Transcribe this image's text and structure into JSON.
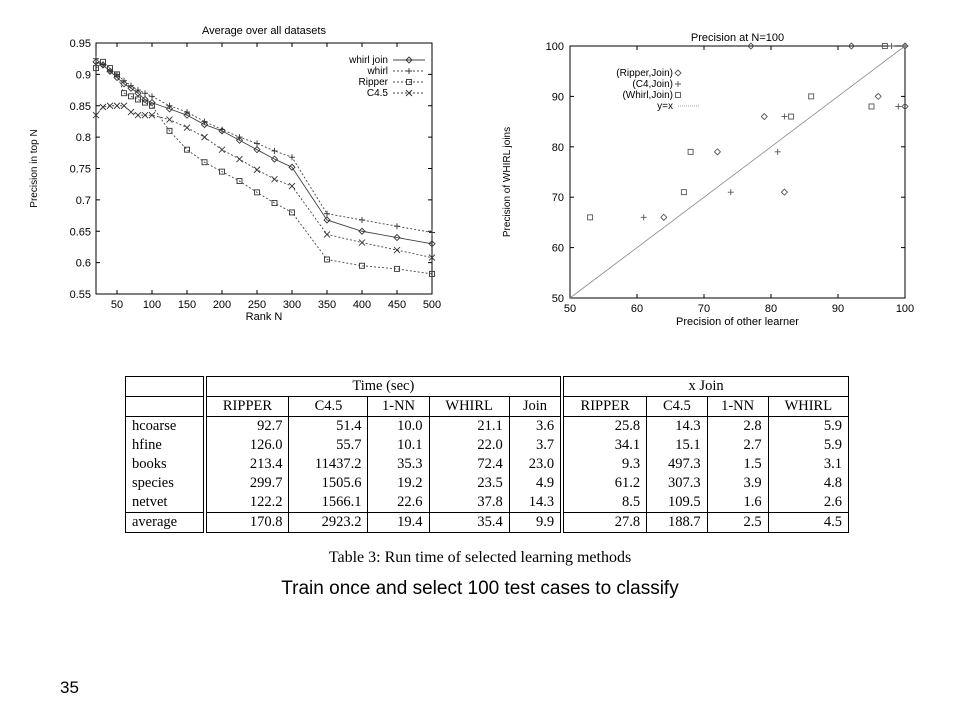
{
  "chart_data": [
    {
      "type": "line",
      "title": "Average over all datasets",
      "xlabel": "Rank N",
      "ylabel": "Precision in top N",
      "xlim": [
        20,
        500
      ],
      "ylim": [
        0.55,
        0.95
      ],
      "xticks": [
        50,
        100,
        150,
        200,
        250,
        300,
        350,
        400,
        450,
        500
      ],
      "yticks": [
        0.55,
        0.6,
        0.65,
        0.7,
        0.75,
        0.8,
        0.85,
        0.9,
        0.95
      ],
      "grid": false,
      "legend_position": "top-right",
      "series": [
        {
          "name": "whirl join",
          "marker": "diamond",
          "dash": "solid",
          "x": [
            20,
            30,
            40,
            50,
            60,
            70,
            80,
            90,
            100,
            125,
            150,
            175,
            200,
            225,
            250,
            275,
            300,
            350,
            400,
            450,
            500
          ],
          "y": [
            0.92,
            0.915,
            0.905,
            0.895,
            0.885,
            0.878,
            0.87,
            0.86,
            0.855,
            0.845,
            0.835,
            0.82,
            0.81,
            0.795,
            0.78,
            0.765,
            0.752,
            0.668,
            0.65,
            0.64,
            0.63
          ]
        },
        {
          "name": "whirl",
          "marker": "plus",
          "dash": "dotted",
          "x": [
            20,
            30,
            40,
            50,
            60,
            70,
            80,
            90,
            100,
            125,
            150,
            175,
            200,
            225,
            250,
            275,
            300,
            350,
            400,
            450,
            500
          ],
          "y": [
            0.925,
            0.915,
            0.905,
            0.9,
            0.89,
            0.882,
            0.875,
            0.87,
            0.865,
            0.85,
            0.84,
            0.825,
            0.812,
            0.8,
            0.79,
            0.778,
            0.768,
            0.678,
            0.668,
            0.658,
            0.648
          ]
        },
        {
          "name": "Ripper",
          "marker": "square",
          "dash": "dotted",
          "x": [
            20,
            30,
            40,
            50,
            60,
            70,
            80,
            90,
            100,
            125,
            150,
            175,
            200,
            225,
            250,
            275,
            300,
            350,
            400,
            450,
            500
          ],
          "y": [
            0.91,
            0.92,
            0.91,
            0.9,
            0.87,
            0.865,
            0.86,
            0.855,
            0.85,
            0.81,
            0.78,
            0.76,
            0.745,
            0.73,
            0.712,
            0.695,
            0.68,
            0.605,
            0.595,
            0.59,
            0.582
          ]
        },
        {
          "name": "C4.5",
          "marker": "cross",
          "dash": "dotted",
          "x": [
            20,
            30,
            40,
            50,
            60,
            70,
            80,
            90,
            100,
            125,
            150,
            175,
            200,
            225,
            250,
            275,
            300,
            350,
            400,
            450,
            500
          ],
          "y": [
            0.835,
            0.848,
            0.85,
            0.85,
            0.85,
            0.84,
            0.835,
            0.835,
            0.835,
            0.828,
            0.815,
            0.8,
            0.78,
            0.765,
            0.748,
            0.733,
            0.722,
            0.645,
            0.632,
            0.62,
            0.608
          ]
        }
      ]
    },
    {
      "type": "scatter",
      "title": "Precision at N=100",
      "xlabel": "Precision of other learner",
      "ylabel": "Precision of WHIRL joins",
      "xlim": [
        50,
        100
      ],
      "ylim": [
        50,
        100
      ],
      "xticks": [
        50,
        60,
        70,
        80,
        90,
        100
      ],
      "yticks": [
        50,
        60,
        70,
        80,
        90,
        100
      ],
      "grid": false,
      "legend_position": "top-left",
      "series": [
        {
          "name": "(Ripper,Join)",
          "marker": "diamond",
          "points": [
            [
              64,
              66
            ],
            [
              72,
              79
            ],
            [
              77,
              100
            ],
            [
              79,
              86
            ],
            [
              82,
              71
            ],
            [
              92,
              100
            ],
            [
              96,
              90
            ],
            [
              100,
              88
            ],
            [
              100,
              100
            ]
          ]
        },
        {
          "name": "(C4,Join)",
          "marker": "plus",
          "points": [
            [
              61,
              66
            ],
            [
              74,
              71
            ],
            [
              81,
              79
            ],
            [
              82,
              86
            ],
            [
              98,
              100
            ],
            [
              99,
              88
            ],
            [
              100,
              100
            ]
          ]
        },
        {
          "name": "(Whirl,Join)",
          "marker": "square",
          "points": [
            [
              53,
              66
            ],
            [
              67,
              71
            ],
            [
              68,
              79
            ],
            [
              83,
              86
            ],
            [
              86,
              90
            ],
            [
              95,
              88
            ],
            [
              97,
              100
            ]
          ]
        },
        {
          "name": "y=x",
          "kind": "line",
          "points": [
            [
              50,
              50
            ],
            [
              100,
              100
            ]
          ]
        }
      ]
    }
  ],
  "table": {
    "group_headers": [
      "Time (sec)",
      "x Join"
    ],
    "time_columns": [
      "RIPPER",
      "C4.5",
      "1-NN",
      "WHIRL",
      "Join"
    ],
    "join_columns": [
      "RIPPER",
      "C4.5",
      "1-NN",
      "WHIRL"
    ],
    "rows": [
      {
        "name": "hcoarse",
        "time": [
          "92.7",
          "51.4",
          "10.0",
          "21.1",
          "3.6"
        ],
        "join": [
          "25.8",
          "14.3",
          "2.8",
          "5.9"
        ]
      },
      {
        "name": "hfine",
        "time": [
          "126.0",
          "55.7",
          "10.1",
          "22.0",
          "3.7"
        ],
        "join": [
          "34.1",
          "15.1",
          "2.7",
          "5.9"
        ]
      },
      {
        "name": "books",
        "time": [
          "213.4",
          "11437.2",
          "35.3",
          "72.4",
          "23.0"
        ],
        "join": [
          "9.3",
          "497.3",
          "1.5",
          "3.1"
        ]
      },
      {
        "name": "species",
        "time": [
          "299.7",
          "1505.6",
          "19.2",
          "23.5",
          "4.9"
        ],
        "join": [
          "61.2",
          "307.3",
          "3.9",
          "4.8"
        ]
      },
      {
        "name": "netvet",
        "time": [
          "122.2",
          "1566.1",
          "22.6",
          "37.8",
          "14.3"
        ],
        "join": [
          "8.5",
          "109.5",
          "1.6",
          "2.6"
        ]
      }
    ],
    "average": {
      "name": "average",
      "time": [
        "170.8",
        "2923.2",
        "19.4",
        "35.4",
        "9.9"
      ],
      "join": [
        "27.8",
        "188.7",
        "2.5",
        "4.5"
      ]
    },
    "caption": "Table 3: Run time of selected learning methods"
  },
  "subtitle": "Train once and select 100 test cases to classify",
  "page_number": "35"
}
